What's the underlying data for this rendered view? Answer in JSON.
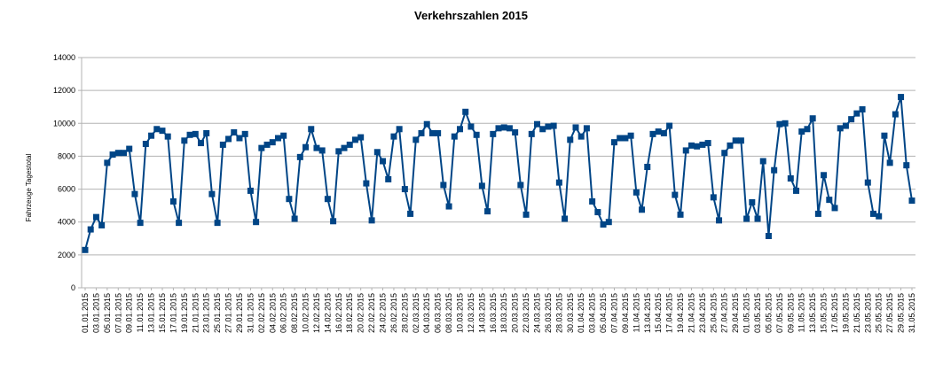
{
  "chart_data": {
    "type": "line",
    "title": "Verkehrszahlen 2015",
    "xlabel": "",
    "ylabel": "Fahrzeuge Tagestotal",
    "ylim": [
      0,
      14000
    ],
    "yticks": [
      0,
      2000,
      4000,
      6000,
      8000,
      10000,
      12000,
      14000
    ],
    "grid": true,
    "legend": "none",
    "series_color": "#004586",
    "x_tick_labels": [
      "01.01.2015",
      "03.01.2015",
      "05.01.2015",
      "07.01.2015",
      "09.01.2015",
      "11.01.2015",
      "13.01.2015",
      "15.01.2015",
      "17.01.2015",
      "19.01.2015",
      "21.01.2015",
      "23.01.2015",
      "25.01.2015",
      "27.01.2015",
      "29.01.2015",
      "31.01.2015",
      "02.02.2015",
      "04.02.2015",
      "06.02.2015",
      "08.02.2015",
      "10.02.2015",
      "12.02.2015",
      "14.02.2015",
      "16.02.2015",
      "18.02.2015",
      "20.02.2015",
      "22.02.2015",
      "24.02.2015",
      "26.02.2015",
      "28.02.2015",
      "02.03.2015",
      "04.03.2015",
      "06.03.2015",
      "08.03.2015",
      "10.03.2015",
      "12.03.2015",
      "14.03.2015",
      "16.03.2015",
      "18.03.2015",
      "20.03.2015",
      "22.03.2015",
      "24.03.2015",
      "26.03.2015",
      "28.03.2015",
      "30.03.2015",
      "01.04.2015",
      "03.04.2015",
      "05.04.2015",
      "07.04.2015",
      "09.04.2015",
      "11.04.2015",
      "13.04.2015",
      "15.04.2015",
      "17.04.2015",
      "19.04.2015",
      "21.04.2015",
      "23.04.2015",
      "25.04.2015",
      "27.04.2015",
      "29.04.2015",
      "01.05.2015",
      "03.05.2015",
      "05.05.2015",
      "07.05.2015",
      "09.05.2015",
      "11.05.2015",
      "13.05.2015",
      "15.05.2015",
      "17.05.2015",
      "19.05.2015",
      "21.05.2015",
      "23.05.2015",
      "25.05.2015",
      "27.05.2015",
      "29.05.2015",
      "31.05.2015"
    ],
    "x_start": "01.01.2015",
    "x_end": "31.05.2015",
    "values": [
      2300,
      3550,
      4300,
      3800,
      7600,
      8100,
      8200,
      8200,
      8450,
      5700,
      3950,
      8750,
      9250,
      9650,
      9550,
      9200,
      5250,
      3950,
      8950,
      9300,
      9350,
      8800,
      9400,
      5700,
      3950,
      8700,
      9050,
      9450,
      9100,
      9350,
      5900,
      4000,
      8500,
      8700,
      8850,
      9100,
      9250,
      5400,
      4200,
      7950,
      8550,
      9650,
      8500,
      8350,
      5400,
      4050,
      8300,
      8500,
      8700,
      9000,
      9150,
      6350,
      4100,
      8250,
      7700,
      6600,
      9200,
      9650,
      6000,
      4500,
      9000,
      9400,
      9950,
      9400,
      9400,
      6250,
      4950,
      9200,
      9650,
      10700,
      9800,
      9300,
      6200,
      4650,
      9350,
      9700,
      9750,
      9700,
      9450,
      6250,
      4450,
      9350,
      9950,
      9650,
      9800,
      9850,
      6400,
      4200,
      9000,
      9750,
      9200,
      9700,
      5250,
      4600,
      3850,
      4000,
      8850,
      9100,
      9100,
      9250,
      5800,
      4750,
      7350,
      9350,
      9500,
      9400,
      9850,
      5650,
      4450,
      8350,
      8650,
      8600,
      8700,
      8800,
      5500,
      4100,
      8200,
      8650,
      8950,
      8950,
      4200,
      5200,
      4200,
      7700,
      3150,
      7150,
      9950,
      10000,
      6650,
      5900,
      9500,
      9650,
      10300,
      4500,
      6850,
      5350,
      4850,
      9700,
      9850,
      10250,
      10600,
      10850,
      6400,
      4500,
      4350,
      9250,
      7600,
      10550,
      11600,
      7450,
      5300
    ]
  }
}
